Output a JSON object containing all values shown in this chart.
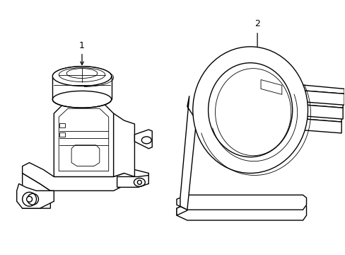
{
  "background_color": "#ffffff",
  "line_color": "#000000",
  "lw": 1.0,
  "tlw": 0.6,
  "label1": "1",
  "label2": "2",
  "fig_width": 4.89,
  "fig_height": 3.6,
  "dpi": 100
}
